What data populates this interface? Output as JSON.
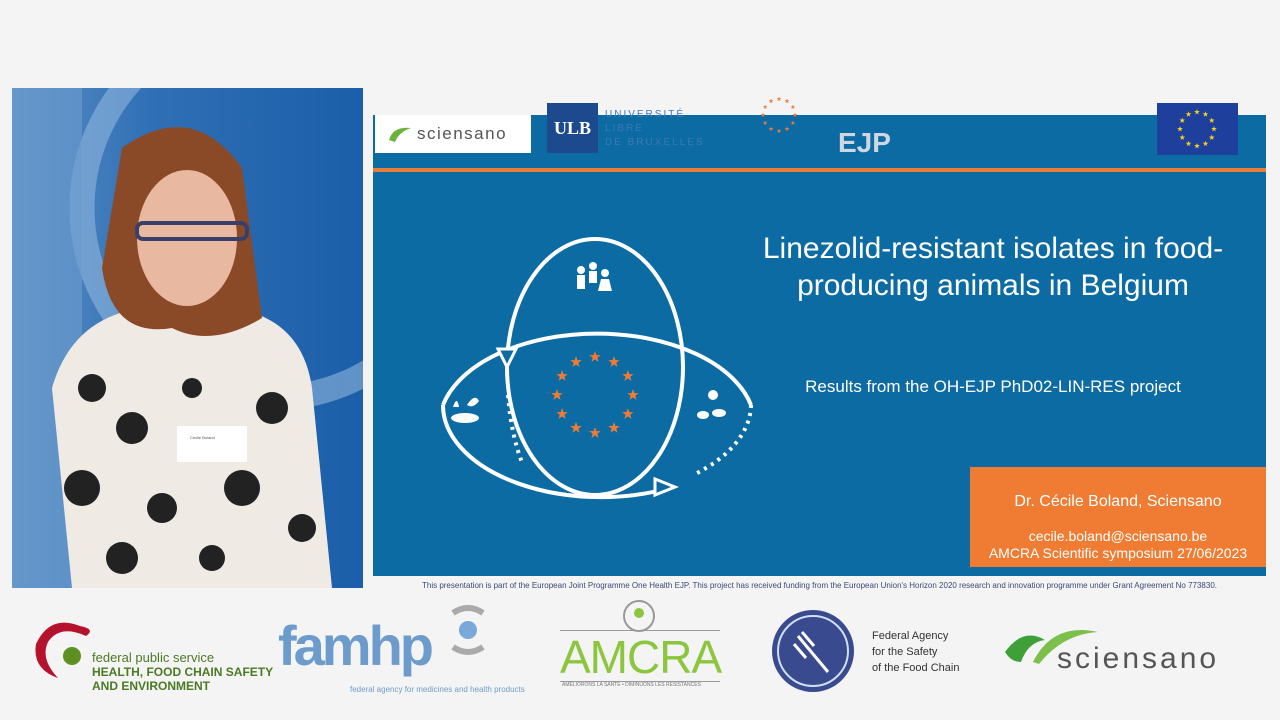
{
  "video": {
    "badge_text": "Cécile Boland"
  },
  "slide": {
    "logos": {
      "sciensano": "sciensano",
      "ulb": "ULB",
      "ulb_text": [
        "UNIVERSITÉ",
        "LIBRE",
        "DE BRUXELLES"
      ],
      "ejp": "EJP"
    },
    "title": "Linezolid-resistant isolates in food-producing animals in Belgium",
    "subtitle": "Results from the OH-EJP PhD02-LIN-RES project",
    "author": "Dr. Cécile Boland, Sciensano",
    "email": "cecile.boland@sciensano.be",
    "event": "AMCRA Scientific symposium 27/06/2023",
    "colors": {
      "background": "#0d6ba3",
      "accent": "#f07c33"
    }
  },
  "footnote": "This presentation is part of the European Joint Programme One Health EJP. This project has received funding from the European Union's Horizon 2020 research and innovation programme under Grant Agreement No 773830.",
  "sponsors": {
    "fps": {
      "line1": "federal public service",
      "line2": "HEALTH, FOOD CHAIN SAFETY",
      "line3": "AND ENVIRONMENT"
    },
    "famhp": {
      "name": "famhp",
      "tagline": "federal agency for medicines and health products"
    },
    "amcra": {
      "name": "AMCRA",
      "tagline": "AMELIORONS LA SANTE • DIMINUONS LES RESISTANCES"
    },
    "favv": {
      "line1": "Federal Agency",
      "line2": "for the Safety",
      "line3": "of the Food Chain"
    },
    "sciensano": "sciensano"
  }
}
